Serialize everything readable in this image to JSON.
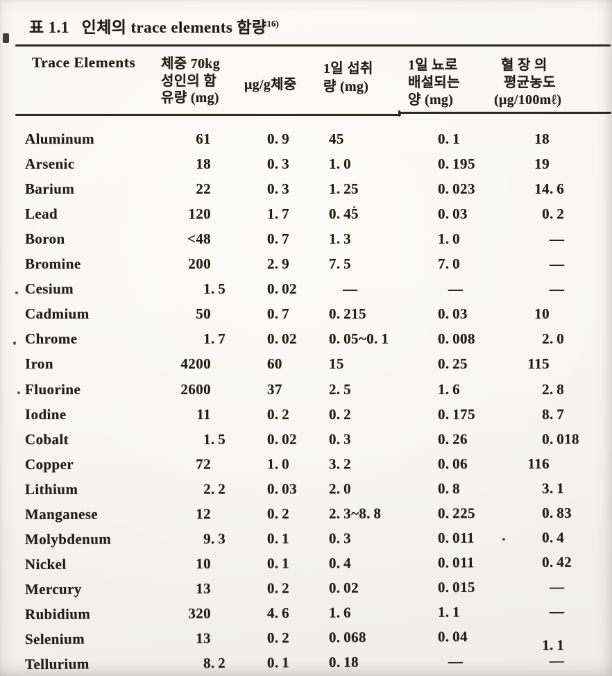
{
  "title": {
    "prefix": "표 1.1",
    "text": "인체의 trace elements 함량",
    "footnote_ref": "16)"
  },
  "colors": {
    "paper": "#f6f5f1",
    "ink": "#211e18",
    "rule": "#2c2822"
  },
  "table": {
    "columns": [
      {
        "key": "element",
        "header_lines": [
          "Trace Elements"
        ]
      },
      {
        "key": "content_in_70kg_adult_mg",
        "header_lines": [
          "체중 70kg",
          "성인의 함",
          "유량 (mg)"
        ]
      },
      {
        "key": "ug_per_g_body_weight",
        "header_lines": [
          "μg/g체중"
        ]
      },
      {
        "key": "daily_intake_mg",
        "header_lines": [
          "1일 섭취",
          "량 (mg)"
        ]
      },
      {
        "key": "daily_urine_excretion_mg",
        "header_lines": [
          "1일 뇨로",
          "배설되는",
          "양 (mg)"
        ]
      },
      {
        "key": "plasma_avg_concentration_ug_per_100ml",
        "header_lines": [
          "혈 장 의",
          "평균농도",
          "(μg/100mℓ)"
        ]
      }
    ],
    "rows": [
      {
        "element": "Aluminum",
        "values": [
          "61",
          "0.9",
          "45",
          "0.1",
          "18"
        ]
      },
      {
        "element": "Arsenic",
        "values": [
          "18",
          "0.3",
          "1.0",
          "0.195",
          "19"
        ]
      },
      {
        "element": "Barium",
        "values": [
          "22",
          "0.3",
          "1.25",
          "0.023",
          "14.6"
        ]
      },
      {
        "element": "Lead",
        "values": [
          "120",
          "1.7",
          "0.45",
          "0.03",
          "0.2"
        ]
      },
      {
        "element": "Boron",
        "values": [
          "<48",
          "0.7",
          "1.3",
          "1.0",
          "—"
        ]
      },
      {
        "element": "Bromine",
        "values": [
          "200",
          "2.9",
          "7.5",
          "7.0",
          "—"
        ]
      },
      {
        "element": "Cesium",
        "values": [
          "1.5",
          "0.02",
          "—",
          "—",
          "—"
        ]
      },
      {
        "element": "Cadmium",
        "values": [
          "50",
          "0.7",
          "0.215",
          "0.03",
          "10"
        ]
      },
      {
        "element": "Chrome",
        "values": [
          "1.7",
          "0.02",
          "0.05~0.1",
          "0.008",
          "2.0"
        ]
      },
      {
        "element": "Iron",
        "values": [
          "4200",
          "60",
          "15",
          "0.25",
          "115"
        ]
      },
      {
        "element": "Fluorine",
        "values": [
          "2600",
          "37",
          "2.5",
          "1.6",
          "2.8"
        ]
      },
      {
        "element": "Iodine",
        "values": [
          "11",
          "0.2",
          "0.2",
          "0.175",
          "8.7"
        ]
      },
      {
        "element": "Cobalt",
        "values": [
          "1.5",
          "0.02",
          "0.3",
          "0.26",
          "0.018"
        ]
      },
      {
        "element": "Copper",
        "values": [
          "72",
          "1.0",
          "3.2",
          "0.06",
          "116"
        ]
      },
      {
        "element": "Lithium",
        "values": [
          "2.2",
          "0.03",
          "2.0",
          "0.8",
          "3.1"
        ]
      },
      {
        "element": "Manganese",
        "values": [
          "12",
          "0.2",
          "2.3~8.8",
          "0.225",
          "0.83"
        ]
      },
      {
        "element": "Molybdenum",
        "values": [
          "9.3",
          "0.1",
          "0.3",
          "0.011",
          "0.4"
        ]
      },
      {
        "element": "Nickel",
        "values": [
          "10",
          "0.1",
          "0.4",
          "0.011",
          "0.42"
        ]
      },
      {
        "element": "Mercury",
        "values": [
          "13",
          "0.2",
          "0.02",
          "0.015",
          "—"
        ]
      },
      {
        "element": "Rubidium",
        "values": [
          "320",
          "4.6",
          "1.6",
          "1.1",
          "—"
        ]
      },
      {
        "element": "Selenium",
        "values": [
          "13",
          "0.2",
          "0.068",
          "0.04",
          "1.1"
        ]
      },
      {
        "element": "Tellurium",
        "values": [
          "8.2",
          "0.1",
          "0.18",
          "—",
          "—"
        ]
      }
    ]
  }
}
